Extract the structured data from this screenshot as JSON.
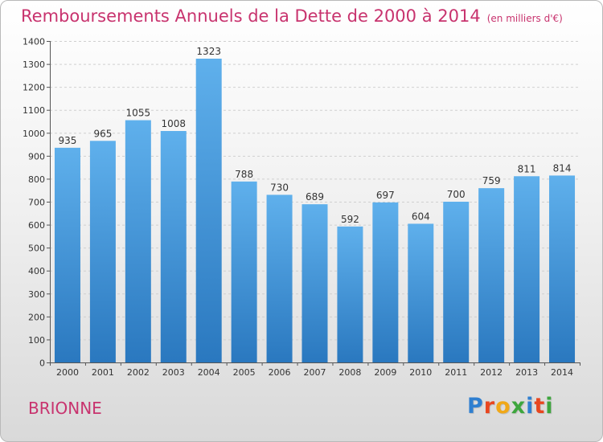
{
  "title": "Remboursements Annuels de la Dette de 2000 à 2014",
  "subtitle": "(en milliers d'€)",
  "city": "BRIONNE",
  "brand": {
    "letters": [
      {
        "ch": "P",
        "color": "#2f7fd0"
      },
      {
        "ch": "r",
        "color": "#e8461f"
      },
      {
        "ch": "o",
        "color": "#f0a818"
      },
      {
        "ch": "x",
        "color": "#3da63d"
      },
      {
        "ch": "i",
        "color": "#2f7fd0"
      },
      {
        "ch": "t",
        "color": "#e8461f"
      },
      {
        "ch": "i",
        "color": "#3da63d"
      }
    ]
  },
  "colors": {
    "accent": "#c8336e",
    "bar_top": "#5fb0ec",
    "bar_bottom": "#2a78bf"
  },
  "chart_data": {
    "type": "bar",
    "categories": [
      "2000",
      "2001",
      "2002",
      "2003",
      "2004",
      "2005",
      "2006",
      "2007",
      "2008",
      "2009",
      "2010",
      "2011",
      "2012",
      "2013",
      "2014"
    ],
    "values": [
      935,
      965,
      1055,
      1008,
      1323,
      788,
      730,
      689,
      592,
      697,
      604,
      700,
      759,
      811,
      814
    ],
    "ylim": [
      0,
      1400
    ],
    "yticks": [
      0,
      100,
      200,
      300,
      400,
      500,
      600,
      700,
      800,
      900,
      1000,
      1100,
      1200,
      1300,
      1400
    ],
    "grid": true,
    "data_labels": true
  }
}
